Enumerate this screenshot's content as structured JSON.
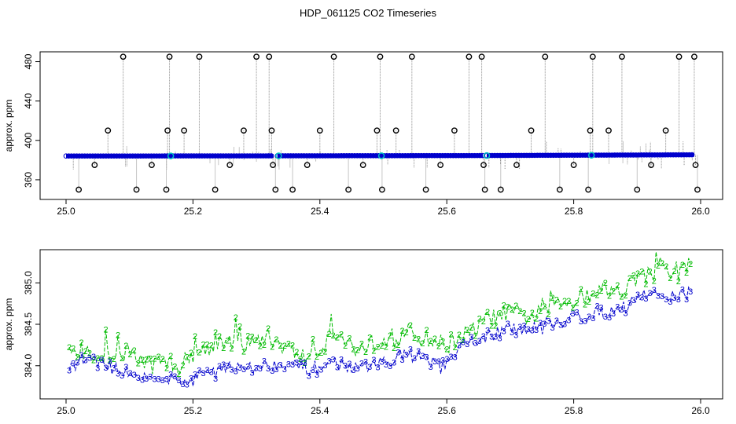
{
  "title": "HDP_061125  CO2 Timeseries",
  "colors": {
    "primary": "#0000cc",
    "secondary": "#00bb00",
    "outlier": "#000000",
    "flag": "#00c0c0",
    "stem": "#8c8c8c"
  },
  "chart_data": [
    {
      "type": "scatter",
      "title": "HDP_061125  CO2 Timeseries",
      "xlabel": "",
      "ylabel": "approx. ppm",
      "xlim": [
        25.0,
        26.0
      ],
      "ylim": [
        340,
        490
      ],
      "xticks": [
        "25.0",
        "25.2",
        "25.4",
        "25.6",
        "25.8",
        "26.0"
      ],
      "yticks": [
        "360",
        "400",
        "440",
        "480"
      ],
      "baseline": {
        "x": [
          25.0,
          25.33,
          25.33,
          25.66,
          25.66,
          25.99
        ],
        "y": [
          384.1,
          384.3,
          384.3,
          384.6,
          384.6,
          385.4
        ]
      },
      "gaps": [
        25.33,
        25.66
      ],
      "outliers": {
        "x": [
          25.02,
          25.045,
          25.066,
          25.09,
          25.111,
          25.135,
          25.158,
          25.16,
          25.163,
          25.186,
          25.21,
          25.235,
          25.258,
          25.28,
          25.3,
          25.32,
          25.324,
          25.326,
          25.33,
          25.357,
          25.38,
          25.4,
          25.422,
          25.445,
          25.468,
          25.49,
          25.495,
          25.498,
          25.52,
          25.545,
          25.567,
          25.59,
          25.612,
          25.635,
          25.655,
          25.658,
          25.66,
          25.685,
          25.71,
          25.733,
          25.755,
          25.778,
          25.8,
          25.823,
          25.826,
          25.83,
          25.855,
          25.876,
          25.9,
          25.922,
          25.945,
          25.966,
          25.99,
          25.992,
          25.995
        ],
        "y": [
          350,
          375,
          410,
          485,
          350,
          375,
          350,
          410,
          485,
          410,
          485,
          350,
          375,
          410,
          485,
          485,
          410,
          375,
          350,
          350,
          375,
          410,
          485,
          350,
          375,
          410,
          485,
          350,
          410,
          485,
          350,
          375,
          410,
          485,
          485,
          375,
          350,
          350,
          375,
          410,
          485,
          350,
          375,
          350,
          410,
          485,
          410,
          485,
          350,
          375,
          410,
          485,
          485,
          375,
          350
        ]
      },
      "flags": {
        "x": [
          25.165,
          25.335,
          25.497,
          25.663,
          25.828
        ],
        "y": [
          384.2,
          384.3,
          384.4,
          384.6,
          384.9
        ]
      }
    },
    {
      "type": "line",
      "title": "",
      "xlabel": "",
      "ylabel": "approx. ppm",
      "xlim": [
        25.0,
        26.0
      ],
      "ylim": [
        383.6,
        385.4
      ],
      "xticks": [
        "25.0",
        "25.2",
        "25.4",
        "25.6",
        "25.8",
        "26.0"
      ],
      "yticks": [
        "384.0",
        "384.5",
        "385.0"
      ],
      "series": [
        {
          "name": "2",
          "color": "#00bb00",
          "x": [
            25.0,
            25.02,
            25.04,
            25.06,
            25.08,
            25.1,
            25.12,
            25.14,
            25.16,
            25.18,
            25.2,
            25.22,
            25.24,
            25.26,
            25.28,
            25.3,
            25.32,
            25.34,
            25.36,
            25.38,
            25.4,
            25.42,
            25.44,
            25.46,
            25.48,
            25.5,
            25.52,
            25.54,
            25.56,
            25.58,
            25.6,
            25.62,
            25.64,
            25.66,
            25.68,
            25.7,
            25.72,
            25.74,
            25.76,
            25.78,
            25.8,
            25.82,
            25.84,
            25.86,
            25.88,
            25.9,
            25.92,
            25.94,
            25.96,
            25.98
          ],
          "y": [
            384.15,
            384.1,
            384.15,
            384.12,
            384.05,
            384.2,
            384.05,
            384.0,
            384.05,
            384.0,
            384.15,
            384.2,
            384.3,
            384.25,
            384.25,
            384.3,
            384.35,
            384.25,
            384.15,
            384.1,
            384.2,
            384.4,
            384.3,
            384.2,
            384.25,
            384.35,
            384.3,
            384.4,
            384.35,
            384.3,
            384.25,
            384.35,
            384.4,
            384.55,
            384.6,
            384.65,
            384.6,
            384.6,
            384.7,
            384.75,
            384.8,
            384.85,
            384.95,
            384.9,
            384.95,
            385.05,
            385.1,
            385.15,
            385.1,
            385.2
          ]
        },
        {
          "name": "3",
          "color": "#0000cc",
          "x": [
            25.0,
            25.02,
            25.04,
            25.06,
            25.08,
            25.1,
            25.12,
            25.14,
            25.16,
            25.18,
            25.2,
            25.22,
            25.24,
            25.26,
            25.28,
            25.3,
            25.32,
            25.34,
            25.36,
            25.38,
            25.4,
            25.42,
            25.44,
            25.46,
            25.48,
            25.5,
            25.52,
            25.54,
            25.56,
            25.58,
            25.6,
            25.62,
            25.64,
            25.66,
            25.68,
            25.7,
            25.72,
            25.74,
            25.76,
            25.78,
            25.8,
            25.82,
            25.84,
            25.86,
            25.88,
            25.9,
            25.92,
            25.94,
            25.96,
            25.98
          ],
          "y": [
            383.95,
            384.05,
            384.1,
            384.0,
            383.95,
            383.95,
            383.85,
            383.9,
            383.85,
            383.8,
            383.85,
            383.9,
            384.0,
            384.0,
            383.95,
            384.0,
            384.0,
            384.05,
            384.0,
            383.95,
            384.0,
            384.05,
            384.0,
            383.95,
            384.0,
            384.05,
            384.1,
            384.15,
            384.1,
            384.05,
            384.0,
            384.2,
            384.3,
            384.35,
            384.4,
            384.45,
            384.4,
            384.5,
            384.55,
            384.5,
            384.6,
            384.6,
            384.65,
            384.65,
            384.7,
            384.8,
            384.9,
            384.8,
            384.85,
            384.9
          ]
        }
      ]
    }
  ]
}
